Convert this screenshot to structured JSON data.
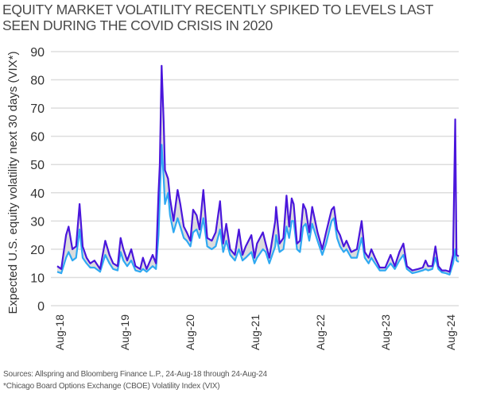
{
  "title": "EQUITY MARKET VOLATILITY RECENTLY SPIKED TO LEVELS LAST SEEN DURING THE COVID CRISIS IN 2020",
  "footnotes": {
    "sources": "Sources: Allspring and Bloomberg Finance L.P., 24-Aug-18 through 24-Aug-24",
    "definition": "*Chicago Board Options Exchange (CBOE) Volatility Index (VIX)"
  },
  "chart_data": {
    "type": "line",
    "title": "EQUITY MARKET VOLATILITY RECENTLY SPIKED TO LEVELS LAST SEEN DURING THE COVID CRISIS IN 2020",
    "xlabel": "",
    "ylabel": "Expected U.S. equity volatility next 30 days (VIX*)",
    "ylim": [
      0,
      90
    ],
    "yticks": [
      "0",
      "10",
      "20",
      "30",
      "40",
      "50",
      "60",
      "70",
      "80",
      "90"
    ],
    "xticks": [
      "Aug-18",
      "Aug-19",
      "Aug-20",
      "Aug-21",
      "Aug-22",
      "Aug-23",
      "Aug-24"
    ],
    "xlim": [
      "2018-08-24",
      "2024-08-24"
    ],
    "grid": "horizontal",
    "legend": "none",
    "band_fill": "between series",
    "colors": {
      "upper": "#4a16dc",
      "lower": "#2fa9f2",
      "band": "#dcdcdc",
      "grid": "#dddddd"
    },
    "x": [
      "2018-08-24",
      "2018-09-15",
      "2018-10-11",
      "2018-10-25",
      "2018-11-15",
      "2018-12-05",
      "2018-12-24",
      "2019-01-10",
      "2019-01-31",
      "2019-02-20",
      "2019-03-15",
      "2019-04-15",
      "2019-05-13",
      "2019-06-05",
      "2019-06-25",
      "2019-07-20",
      "2019-08-05",
      "2019-08-20",
      "2019-09-10",
      "2019-10-02",
      "2019-10-25",
      "2019-11-20",
      "2019-12-05",
      "2019-12-25",
      "2020-01-27",
      "2020-02-14",
      "2020-02-28",
      "2020-03-06",
      "2020-03-16",
      "2020-03-27",
      "2020-04-03",
      "2020-04-20",
      "2020-05-01",
      "2020-05-20",
      "2020-06-11",
      "2020-06-26",
      "2020-07-15",
      "2020-07-31",
      "2020-08-20",
      "2020-09-04",
      "2020-09-23",
      "2020-10-09",
      "2020-10-30",
      "2020-11-20",
      "2020-12-15",
      "2021-01-05",
      "2021-01-29",
      "2021-02-15",
      "2021-03-04",
      "2021-03-25",
      "2021-04-20",
      "2021-05-12",
      "2021-06-01",
      "2021-06-18",
      "2021-07-19",
      "2021-08-05",
      "2021-08-19",
      "2021-09-20",
      "2021-10-05",
      "2021-10-25",
      "2021-11-26",
      "2021-12-01",
      "2021-12-20",
      "2022-01-10",
      "2022-01-27",
      "2022-02-10",
      "2022-02-24",
      "2022-03-07",
      "2022-03-25",
      "2022-04-10",
      "2022-04-28",
      "2022-05-12",
      "2022-05-31",
      "2022-06-16",
      "2022-07-15",
      "2022-08-10",
      "2022-08-31",
      "2022-09-30",
      "2022-10-13",
      "2022-10-30",
      "2022-11-15",
      "2022-12-05",
      "2022-12-20",
      "2023-01-15",
      "2023-02-15",
      "2023-03-13",
      "2023-03-30",
      "2023-04-20",
      "2023-05-05",
      "2023-05-25",
      "2023-06-20",
      "2023-07-20",
      "2023-08-18",
      "2023-09-10",
      "2023-10-05",
      "2023-10-27",
      "2023-11-15",
      "2023-12-15",
      "2024-01-15",
      "2024-02-10",
      "2024-02-25",
      "2024-03-10",
      "2024-04-02",
      "2024-04-19",
      "2024-05-05",
      "2024-05-24",
      "2024-06-15",
      "2024-07-05",
      "2024-07-24",
      "2024-08-05",
      "2024-08-12",
      "2024-08-24"
    ],
    "series": [
      {
        "values": [
          14,
          13,
          25,
          28,
          20,
          21,
          36,
          21,
          17,
          15,
          16,
          13,
          23,
          18,
          15,
          14,
          24,
          20,
          16,
          20,
          14,
          13,
          17,
          13,
          18,
          15,
          40,
          50,
          85,
          65,
          48,
          45,
          38,
          30,
          41,
          36,
          28,
          26,
          23,
          34,
          32,
          27,
          41,
          24,
          23,
          26,
          37,
          22,
          29,
          20,
          18,
          27,
          18,
          21,
          25,
          17,
          22,
          26,
          22,
          17,
          30,
          35,
          22,
          24,
          39,
          28,
          38,
          36,
          22,
          23,
          36,
          34,
          26,
          35,
          26,
          20,
          26,
          34,
          35,
          27,
          25,
          21,
          23,
          19,
          20,
          30,
          19,
          17,
          20,
          17,
          13.5,
          13.5,
          18,
          14,
          19,
          22,
          14,
          12.5,
          13,
          13.5,
          16,
          14,
          14,
          21,
          14,
          12.5,
          12.5,
          12,
          18,
          66,
          18,
          17.5
        ]
      },
      {
        "values": [
          12,
          11.5,
          17,
          19,
          16,
          17,
          27,
          17,
          15,
          13.5,
          13.5,
          12,
          18,
          15,
          13,
          12.5,
          19,
          16,
          14,
          16,
          12.5,
          12,
          13,
          12,
          14,
          13,
          25,
          38,
          57,
          45,
          36,
          40,
          32,
          26,
          31,
          28,
          24,
          23,
          21,
          26,
          27,
          24,
          31,
          21,
          20,
          21,
          27,
          19,
          23,
          18,
          16,
          20,
          16,
          17,
          19,
          15,
          17,
          20,
          19,
          15,
          21,
          25,
          19,
          20,
          28,
          24,
          30,
          30,
          20,
          19,
          28,
          29,
          23,
          29,
          23,
          18,
          22,
          30,
          31,
          24,
          21,
          19,
          20,
          17,
          17,
          24,
          17,
          15,
          17,
          15,
          12.5,
          12.5,
          15,
          13,
          16,
          18,
          13,
          11.5,
          12,
          12.5,
          13,
          12.5,
          13,
          17,
          13,
          11.8,
          11.5,
          11,
          15,
          20,
          16,
          15.5
        ]
      }
    ]
  }
}
